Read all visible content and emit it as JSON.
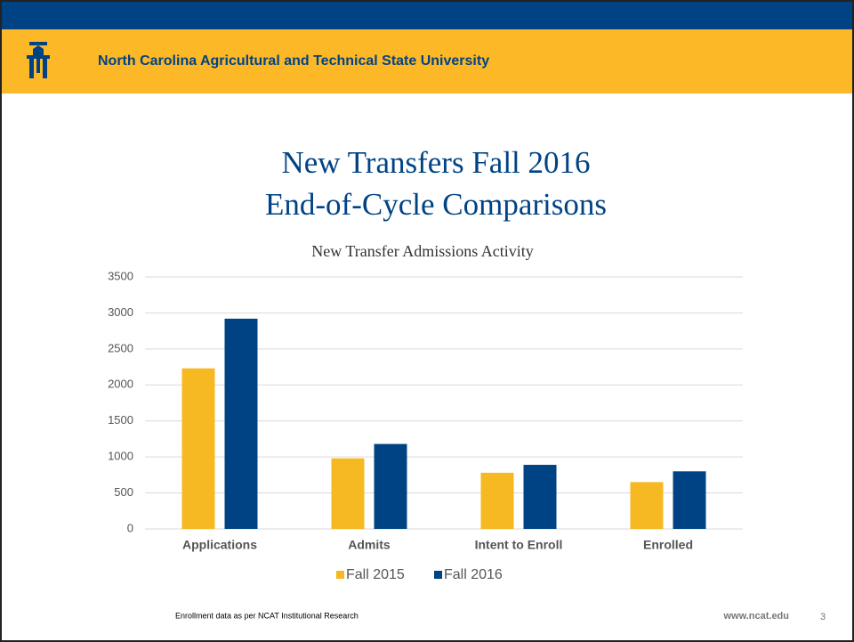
{
  "header": {
    "university": "North Carolina Agricultural and Technical State University"
  },
  "slide": {
    "title_lines": [
      "New Transfers Fall 2016",
      "End-of-Cycle Comparisons"
    ]
  },
  "footer": {
    "source": "Enrollment data as per NCAT Institutional Research",
    "url": "www.ncat.edu",
    "page_number": "3"
  },
  "chart_data": {
    "type": "bar",
    "title": "New Transfer Admissions Activity",
    "categories": [
      "Applications",
      "Admits",
      "Intent to Enroll",
      "Enrolled"
    ],
    "series": [
      {
        "name": "Fall 2015",
        "color": "#f6b921",
        "values": [
          2230,
          980,
          780,
          650
        ]
      },
      {
        "name": "Fall 2016",
        "color": "#004384",
        "values": [
          2920,
          1180,
          890,
          800
        ]
      }
    ],
    "ylim": [
      0,
      3500
    ],
    "yticks": [
      0,
      500,
      1000,
      1500,
      2000,
      2500,
      3000,
      3500
    ],
    "grid": true,
    "legend": "bottom"
  }
}
